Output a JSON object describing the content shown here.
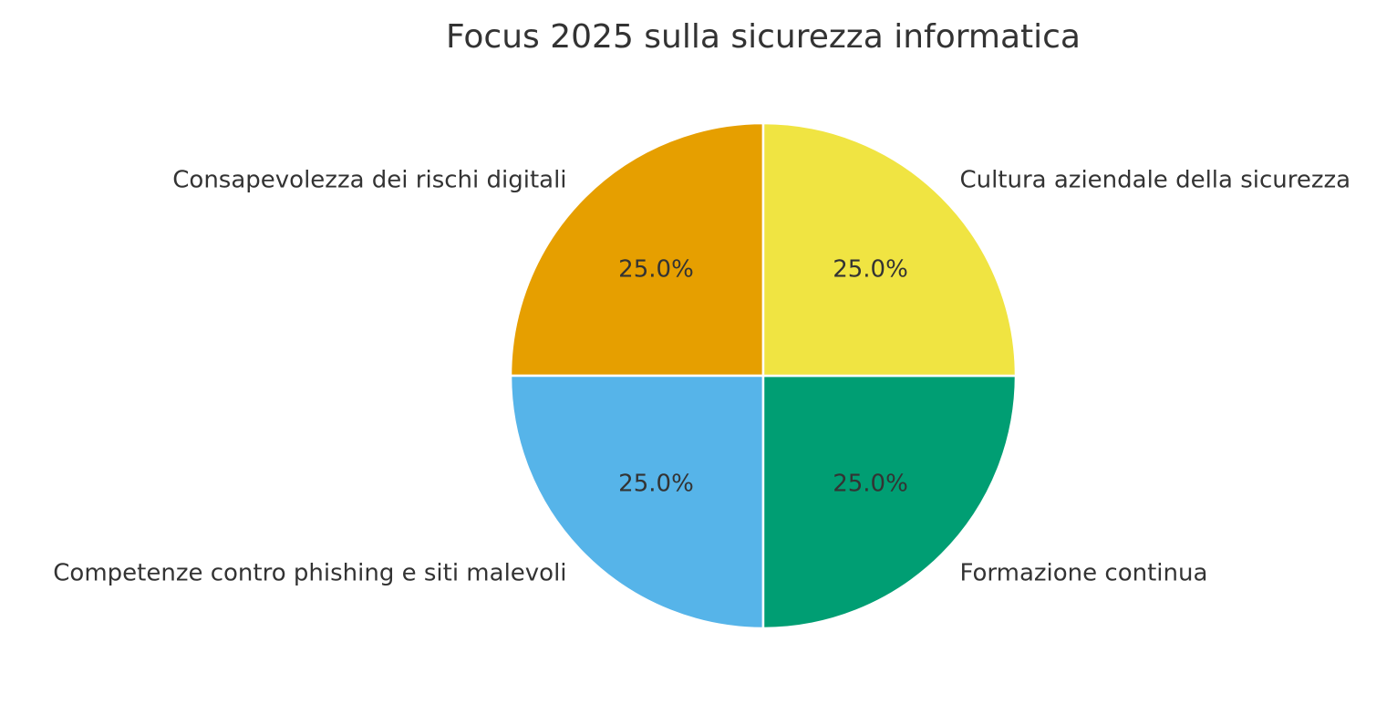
{
  "chart_data": {
    "type": "pie",
    "title": "Focus 2025 sulla sicurezza informatica",
    "start_angle_deg": 90,
    "direction": "counterclockwise",
    "slices": [
      {
        "label": "Consapevolezza dei rischi digitali",
        "value": 25.0,
        "pct_label": "25.0%",
        "color": "#E69F00"
      },
      {
        "label": "Competenze contro phishing e siti malevoli",
        "value": 25.0,
        "pct_label": "25.0%",
        "color": "#56B4E9"
      },
      {
        "label": "Formazione continua",
        "value": 25.0,
        "pct_label": "25.0%",
        "color": "#009E73"
      },
      {
        "label": "Cultura aziendale della sicurezza",
        "value": 25.0,
        "pct_label": "25.0%",
        "color": "#F0E442"
      }
    ],
    "edge_color": "#FFFFFF"
  }
}
